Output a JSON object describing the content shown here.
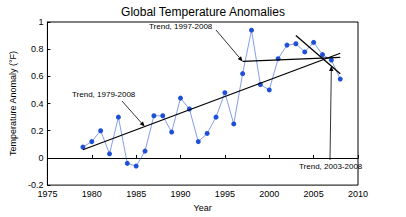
{
  "chart_data": {
    "type": "line",
    "title": "Global Temperature Anomalies",
    "x_label": "Year",
    "y_label": "Temperature Anomaly (°F)",
    "xlim": [
      1975,
      2010
    ],
    "xticks": [
      1975,
      1980,
      1985,
      1990,
      1995,
      2000,
      2005,
      2010
    ],
    "ylim": [
      -0.2,
      1.0
    ],
    "yticks": [
      -0.2,
      0,
      0.2,
      0.4,
      0.6,
      0.8,
      1
    ],
    "grid": false,
    "series": [
      {
        "x": [
          1979,
          1980,
          1981,
          1982,
          1983,
          1984,
          1985,
          1986,
          1987,
          1988,
          1989,
          1990,
          1991,
          1992,
          1993,
          1994,
          1995,
          1996,
          1997,
          1998,
          1999,
          2000,
          2001,
          2002,
          2003,
          2004,
          2005,
          2006,
          2007,
          2008
        ],
        "values": [
          0.08,
          0.12,
          0.2,
          0.03,
          0.3,
          -0.04,
          -0.06,
          0.05,
          0.31,
          0.31,
          0.19,
          0.44,
          0.36,
          0.12,
          0.18,
          0.3,
          0.48,
          0.25,
          0.62,
          0.94,
          0.54,
          0.5,
          0.73,
          0.83,
          0.84,
          0.78,
          0.85,
          0.76,
          0.72,
          0.58
        ],
        "color": "#1f4fd8",
        "marker": "circle",
        "line_style": "solid"
      },
      {
        "name": "Trend, 1979-2008",
        "x": [
          1979,
          2008
        ],
        "values": [
          0.06,
          0.77
        ],
        "color": "#000000",
        "marker": "none",
        "line_style": "solid"
      },
      {
        "name": "Trend, 1997-2008",
        "x": [
          1997,
          2008
        ],
        "values": [
          0.71,
          0.74
        ],
        "color": "#000000",
        "marker": "none",
        "line_style": "solid"
      },
      {
        "name": "Trend, 2003-2008",
        "x": [
          2003,
          2008
        ],
        "values": [
          0.9,
          0.62
        ],
        "color": "#000000",
        "marker": "none",
        "line_style": "solid"
      }
    ]
  }
}
